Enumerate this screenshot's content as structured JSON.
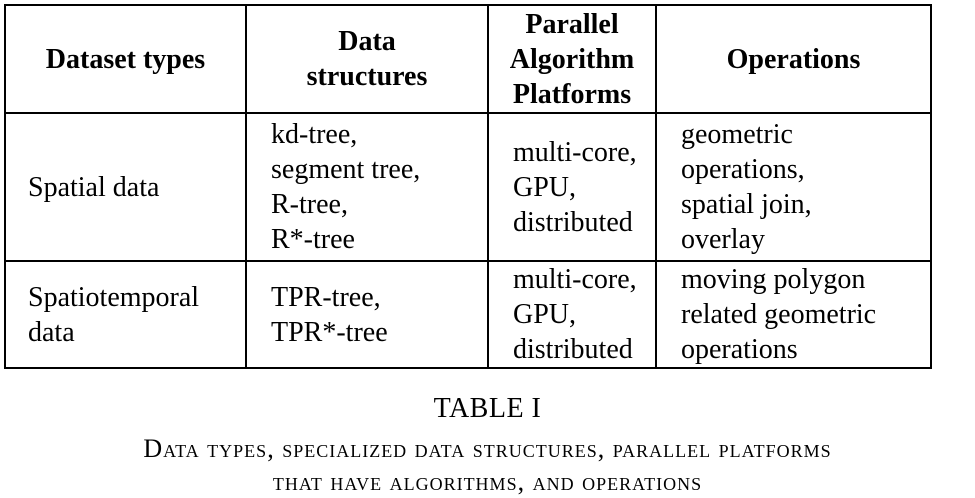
{
  "table": {
    "headers": [
      [
        "Dataset types"
      ],
      [
        "Data",
        "structures"
      ],
      [
        "Parallel",
        "Algorithm",
        "Platforms"
      ],
      [
        "Operations"
      ]
    ],
    "rows": [
      {
        "cells": [
          [
            "Spatial data"
          ],
          [
            "kd-tree,",
            "segment tree,",
            "R-tree,",
            "R*-tree"
          ],
          [
            "multi-core,",
            "GPU,",
            "distributed"
          ],
          [
            "geometric",
            "operations,",
            "spatial join,",
            "overlay"
          ]
        ]
      },
      {
        "cells": [
          [
            "Spatiotemporal",
            "data"
          ],
          [
            "TPR-tree,",
            "TPR*-tree"
          ],
          [
            "multi-core,",
            "GPU,",
            "distributed"
          ],
          [
            "moving polygon",
            "related geometric",
            "operations"
          ]
        ]
      }
    ]
  },
  "caption": {
    "number": "TABLE I",
    "lines": [
      "Data types, specialized data structures, parallel platforms",
      "that have algorithms, and operations"
    ]
  }
}
